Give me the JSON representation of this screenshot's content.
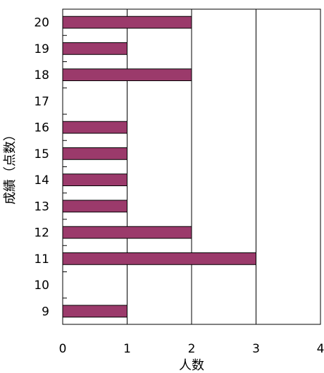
{
  "chart_data": {
    "type": "bar",
    "orientation": "horizontal",
    "categories": [
      "9",
      "10",
      "11",
      "12",
      "13",
      "14",
      "15",
      "16",
      "17",
      "18",
      "19",
      "20"
    ],
    "values": [
      1,
      0,
      3,
      2,
      1,
      1,
      1,
      1,
      0,
      2,
      1,
      2
    ],
    "xlabel": "人数",
    "ylabel": "成績（点数）",
    "xlim": [
      0,
      4
    ],
    "xticks": [
      "0",
      "1",
      "2",
      "3",
      "4"
    ],
    "grid": "vertical",
    "colors": {
      "bar": "#9B3A6B",
      "bar_edge": "#000000",
      "grid": "#000000"
    }
  }
}
